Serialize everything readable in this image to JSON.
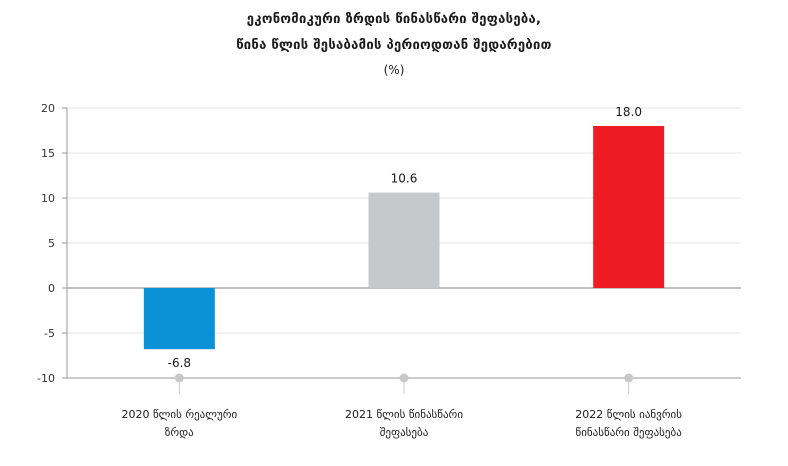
{
  "title_line1": "ეკონომიკური ზრდის წინასწარი შეფასება,",
  "title_line2": "წინა წლის შესაბამის პერიოდთან შედარებით",
  "unit": "(%)",
  "chart_data": {
    "type": "bar",
    "title": "ეკონომიკური ზრდის წინასწარი შეფასება, წინა წლის შესაბამის პერიოდთან შედარებით",
    "ylabel": "(%)",
    "categories": [
      [
        "2020 წლის რეალური",
        "ზრდა"
      ],
      [
        "2021 წლის წინასწარი",
        "შეფასება"
      ],
      [
        "2022 წლის იანვრის",
        "წინასწარი შეფასება"
      ]
    ],
    "values": [
      -6.8,
      10.6,
      18.0
    ],
    "value_labels": [
      "-6.8",
      "10.6",
      "18.0"
    ],
    "colors": [
      "#0b91d6",
      "#c7c8ca",
      "#ed1c24"
    ],
    "ylim": [
      -10,
      20
    ],
    "yticks": [
      "-10",
      "-5",
      "0",
      "5",
      "10",
      "15",
      "20"
    ],
    "grid": true
  }
}
